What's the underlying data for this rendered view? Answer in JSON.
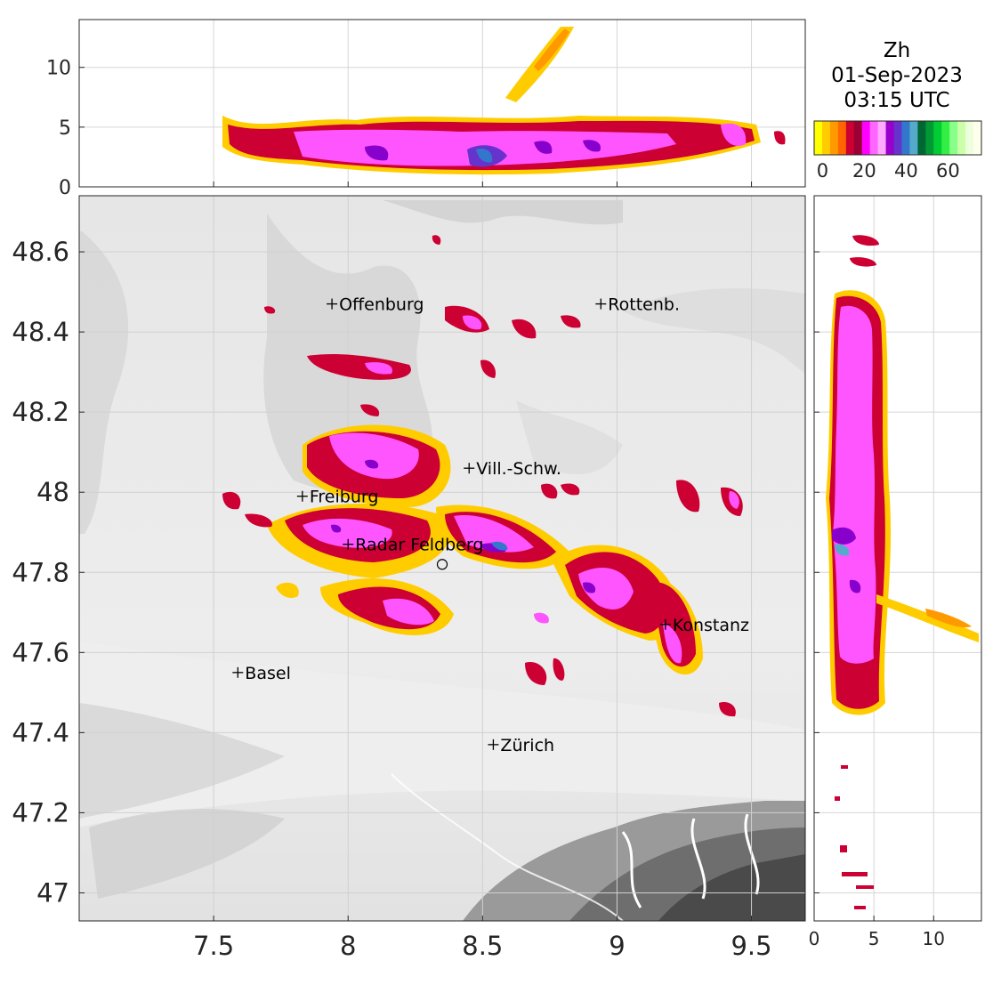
{
  "title": {
    "variable": "Zh",
    "date": "01-Sep-2023",
    "time": "03:15 UTC"
  },
  "colorbar": {
    "ticks": [
      "0",
      "20",
      "40",
      "60"
    ],
    "colors": [
      "#ffff00",
      "#ffcc00",
      "#ff9900",
      "#ff6600",
      "#cc0033",
      "#990033",
      "#ff00ff",
      "#ff66ff",
      "#ffaaff",
      "#9900cc",
      "#6633cc",
      "#3377cc",
      "#55aacc",
      "#006633",
      "#009933",
      "#00cc33",
      "#33ee44",
      "#88ff88",
      "#ccffaa",
      "#eeffdd",
      "#ffffee"
    ]
  },
  "main_map": {
    "xticks": [
      "7.5",
      "8",
      "8.5",
      "9",
      "9.5"
    ],
    "yticks": [
      "48.6",
      "48.4",
      "48.2",
      "48",
      "47.8",
      "47.6",
      "47.4",
      "47.2",
      "47"
    ],
    "xlim": [
      7.0,
      9.7
    ],
    "ylim": [
      46.93,
      48.74
    ]
  },
  "top_panel": {
    "yticks": [
      "0",
      "5",
      "10"
    ],
    "ylim": [
      0,
      14
    ]
  },
  "right_panel": {
    "xticks": [
      "0",
      "5",
      "10"
    ],
    "xlim": [
      0,
      14
    ]
  },
  "cities": [
    {
      "name": "Offenburg",
      "lon": 7.94,
      "lat": 48.47
    },
    {
      "name": "Rottenb.",
      "lon": 8.94,
      "lat": 48.47
    },
    {
      "name": "Vill.-Schw.",
      "lon": 8.45,
      "lat": 48.06
    },
    {
      "name": "Freiburg",
      "lon": 7.83,
      "lat": 47.99
    },
    {
      "name": "Radar Feldberg",
      "lon": 8.0,
      "lat": 47.87
    },
    {
      "name": "Konstanz",
      "lon": 9.18,
      "lat": 47.67
    },
    {
      "name": "Basel",
      "lon": 7.59,
      "lat": 47.55
    },
    {
      "name": "Zürich",
      "lon": 8.54,
      "lat": 47.37
    }
  ],
  "radar_site": {
    "lon": 8.35,
    "lat": 47.82
  }
}
